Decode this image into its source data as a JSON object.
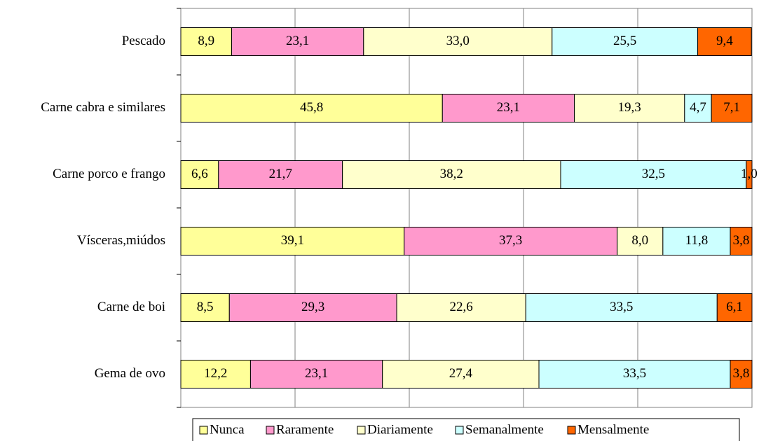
{
  "chart_data": {
    "type": "stacked_barh",
    "categories": [
      "Pescado",
      "Carne cabra e similares",
      "Carne porco e frango",
      "Vísceras,miúdos",
      "Carne de boi",
      "Gema de ovo"
    ],
    "series": [
      {
        "name": "Nunca",
        "color": "#ffff99",
        "values": [
          8.9,
          45.8,
          6.6,
          39.1,
          8.5,
          12.2
        ],
        "value_labels": [
          "8,9",
          "45,8",
          "6,6",
          "39,1",
          "8,5",
          "12,2"
        ]
      },
      {
        "name": "Raramente",
        "color": "#ff99cc",
        "values": [
          23.1,
          23.1,
          21.7,
          37.3,
          29.3,
          23.1
        ],
        "value_labels": [
          "23,1",
          "23,1",
          "21,7",
          "37,3",
          "29,3",
          "23,1"
        ]
      },
      {
        "name": "Diariamente",
        "color": "#ffffcc",
        "values": [
          33.0,
          19.3,
          38.2,
          8.0,
          22.6,
          27.4
        ],
        "value_labels": [
          "33,0",
          "19,3",
          "38,2",
          "8,0",
          "22,6",
          "27,4"
        ]
      },
      {
        "name": "Semanalmente",
        "color": "#ccffff",
        "values": [
          25.5,
          4.7,
          32.5,
          11.8,
          33.5,
          33.5
        ],
        "value_labels": [
          "25,5",
          "4,7",
          "32,5",
          "11,8",
          "33,5",
          "33,5"
        ]
      },
      {
        "name": "Mensalmente",
        "color": "#ff6600",
        "values": [
          9.4,
          7.1,
          1.0,
          3.8,
          6.1,
          3.8
        ],
        "value_labels": [
          "9,4",
          "7,1",
          "1,0",
          "3,8",
          "6,1",
          "3,8"
        ]
      }
    ],
    "xlim": [
      0,
      100
    ],
    "xticks": [
      0,
      20,
      40,
      60,
      80,
      100
    ],
    "grid": true,
    "legend": "bottom"
  }
}
